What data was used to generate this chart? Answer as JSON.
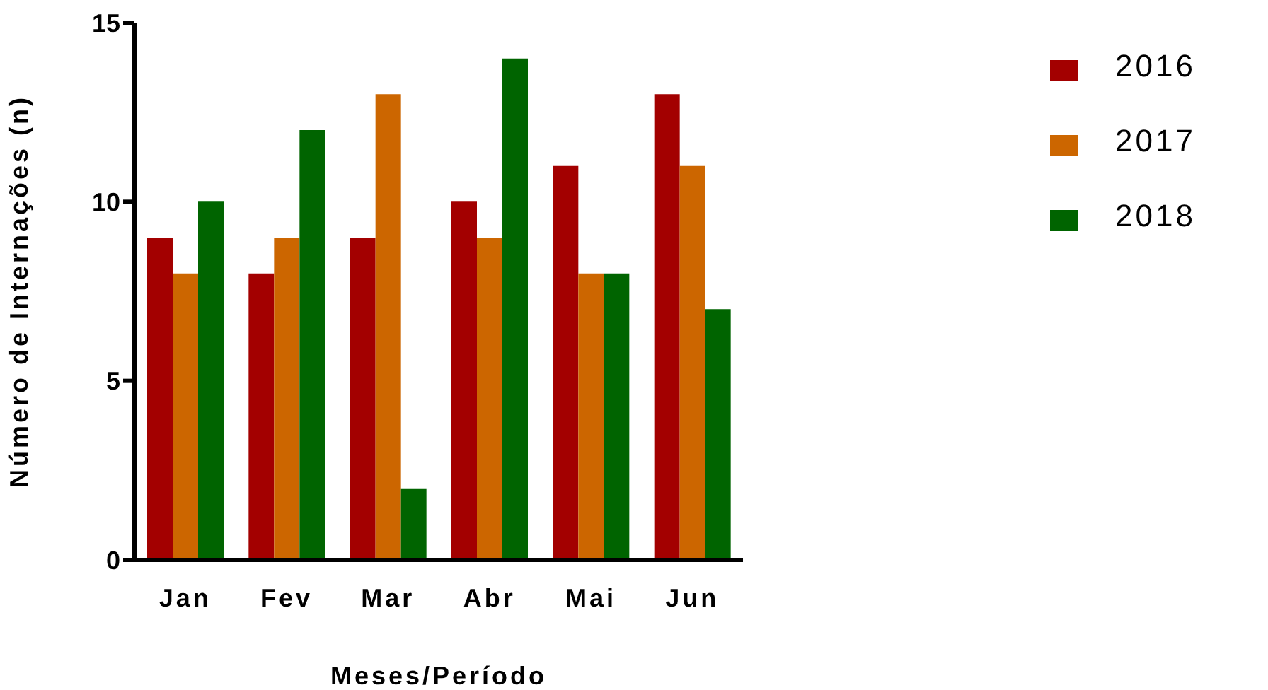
{
  "chart_data": {
    "type": "bar",
    "xlabel": "Meses/Período",
    "ylabel": "Número de Internações (n)",
    "categories": [
      "Jan",
      "Fev",
      "Mar",
      "Abr",
      "Mai",
      "Jun"
    ],
    "series": [
      {
        "name": "2016",
        "color": "#a30000",
        "values": [
          9,
          8,
          9,
          10,
          11,
          13
        ]
      },
      {
        "name": "2017",
        "color": "#cc6600",
        "values": [
          8,
          9,
          13,
          9,
          8,
          11
        ]
      },
      {
        "name": "2018",
        "color": "#006400",
        "values": [
          10,
          12,
          2,
          14,
          8,
          7
        ]
      }
    ],
    "ylim": [
      0,
      15
    ],
    "yticks": [
      0,
      5,
      10,
      15
    ],
    "grid": false,
    "legend": "top right"
  }
}
